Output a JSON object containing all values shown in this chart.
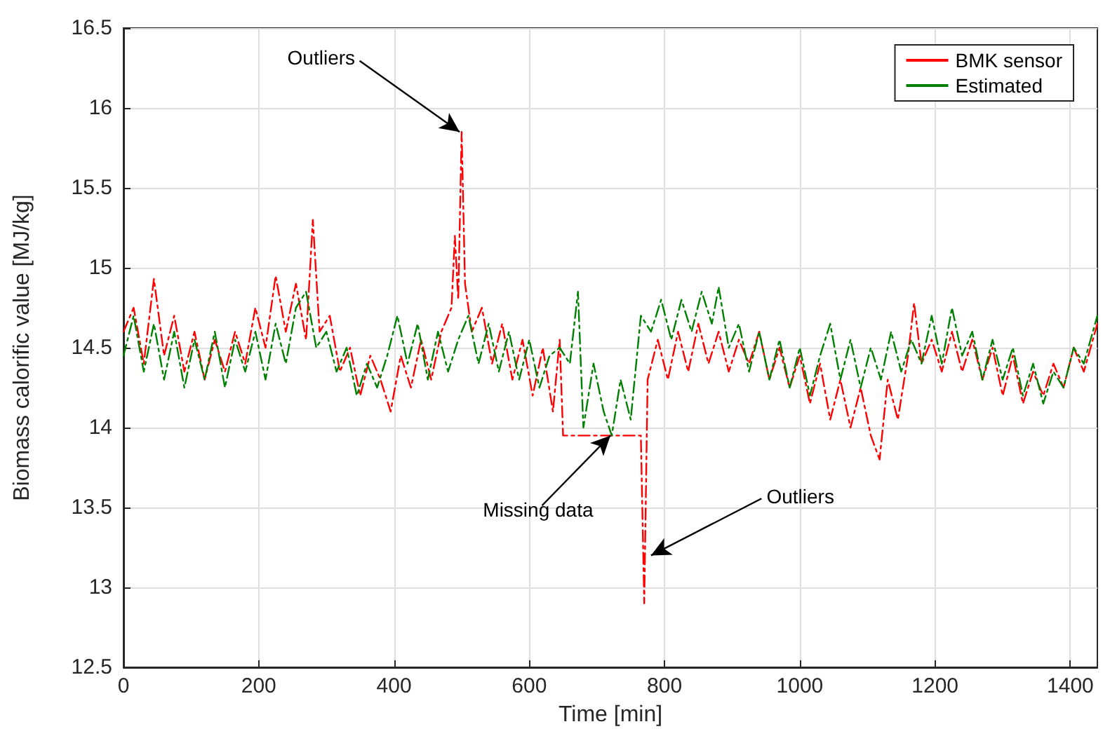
{
  "chart_data": {
    "type": "line",
    "xlabel": "Time [min]",
    "ylabel": "Biomass calorific value [MJ/kg]",
    "xlim": [
      0,
      1440
    ],
    "xticks": [
      0,
      200,
      400,
      600,
      800,
      1000,
      1200,
      1400
    ],
    "ylim": [
      12.5,
      16.5
    ],
    "yticks": [
      12.5,
      13,
      13.5,
      14,
      14.5,
      15,
      15.5,
      16,
      16.5
    ],
    "grid": true,
    "legend": "top right",
    "marker": "none",
    "line_style": "dashed",
    "annotations": [
      {
        "text": "Outliers",
        "x": 497,
        "y": 15.85
      },
      {
        "text": "Missing data",
        "x": 720,
        "y": 13.95
      },
      {
        "text": "Outliers",
        "x": 780,
        "y": 13.2
      }
    ],
    "series": [
      {
        "name": "BMK sensor",
        "color": "#ff0000",
        "x": [
          0,
          15,
          30,
          45,
          60,
          75,
          90,
          105,
          120,
          135,
          150,
          165,
          180,
          195,
          210,
          225,
          240,
          255,
          270,
          280,
          290,
          305,
          320,
          335,
          350,
          365,
          380,
          395,
          410,
          425,
          440,
          455,
          470,
          485,
          490,
          495,
          500,
          505,
          515,
          530,
          545,
          560,
          575,
          590,
          605,
          620,
          635,
          645,
          650,
          700,
          765,
          770,
          775,
          790,
          805,
          820,
          835,
          850,
          865,
          880,
          895,
          910,
          925,
          940,
          955,
          970,
          985,
          1000,
          1015,
          1030,
          1045,
          1060,
          1075,
          1090,
          1105,
          1118,
          1130,
          1145,
          1160,
          1169,
          1180,
          1195,
          1210,
          1225,
          1240,
          1255,
          1270,
          1285,
          1300,
          1315,
          1330,
          1345,
          1360,
          1375,
          1390,
          1405,
          1420,
          1440
        ],
        "values": [
          14.6,
          14.75,
          14.4,
          14.93,
          14.45,
          14.7,
          14.35,
          14.6,
          14.3,
          14.55,
          14.35,
          14.6,
          14.4,
          14.75,
          14.5,
          14.95,
          14.6,
          14.9,
          14.55,
          15.3,
          14.6,
          14.7,
          14.35,
          14.5,
          14.2,
          14.45,
          14.3,
          14.1,
          14.45,
          14.25,
          14.55,
          14.3,
          14.6,
          14.75,
          15.2,
          14.8,
          15.85,
          14.9,
          14.6,
          14.75,
          14.4,
          14.65,
          14.3,
          14.55,
          14.2,
          14.5,
          14.1,
          14.55,
          13.95,
          13.95,
          13.95,
          12.9,
          14.3,
          14.55,
          14.3,
          14.6,
          14.35,
          14.65,
          14.4,
          14.6,
          14.35,
          14.55,
          14.4,
          14.6,
          14.3,
          14.5,
          14.25,
          14.45,
          14.15,
          14.4,
          14.05,
          14.3,
          14.0,
          14.25,
          13.95,
          13.8,
          14.3,
          14.05,
          14.45,
          14.78,
          14.4,
          14.55,
          14.35,
          14.6,
          14.35,
          14.55,
          14.3,
          14.5,
          14.2,
          14.45,
          14.15,
          14.35,
          14.2,
          14.4,
          14.25,
          14.5,
          14.35,
          14.65
        ]
      },
      {
        "name": "Estimated",
        "color": "#008000",
        "x": [
          0,
          15,
          30,
          45,
          60,
          75,
          90,
          105,
          120,
          135,
          150,
          165,
          180,
          195,
          210,
          225,
          240,
          255,
          270,
          285,
          300,
          315,
          330,
          345,
          360,
          375,
          390,
          405,
          420,
          435,
          450,
          465,
          480,
          495,
          510,
          525,
          540,
          555,
          570,
          585,
          600,
          615,
          630,
          645,
          660,
          672,
          680,
          695,
          710,
          722,
          735,
          750,
          765,
          780,
          795,
          810,
          825,
          840,
          855,
          870,
          880,
          895,
          910,
          925,
          940,
          955,
          970,
          985,
          1000,
          1015,
          1030,
          1045,
          1060,
          1075,
          1090,
          1105,
          1120,
          1135,
          1150,
          1165,
          1180,
          1195,
          1210,
          1225,
          1240,
          1255,
          1270,
          1285,
          1300,
          1315,
          1330,
          1345,
          1360,
          1375,
          1390,
          1405,
          1420,
          1440
        ],
        "values": [
          14.45,
          14.7,
          14.35,
          14.65,
          14.3,
          14.6,
          14.25,
          14.55,
          14.3,
          14.6,
          14.25,
          14.55,
          14.35,
          14.6,
          14.3,
          14.65,
          14.4,
          14.75,
          14.85,
          14.5,
          14.6,
          14.35,
          14.5,
          14.2,
          14.4,
          14.25,
          14.45,
          14.7,
          14.4,
          14.65,
          14.3,
          14.6,
          14.35,
          14.55,
          14.7,
          14.4,
          14.65,
          14.35,
          14.6,
          14.3,
          14.55,
          14.25,
          14.45,
          14.5,
          14.4,
          14.85,
          14.0,
          14.4,
          14.1,
          13.95,
          14.3,
          14.05,
          14.7,
          14.6,
          14.8,
          14.55,
          14.8,
          14.6,
          14.85,
          14.65,
          14.88,
          14.5,
          14.65,
          14.35,
          14.6,
          14.3,
          14.55,
          14.25,
          14.5,
          14.2,
          14.45,
          14.65,
          14.3,
          14.55,
          14.25,
          14.5,
          14.3,
          14.6,
          14.35,
          14.55,
          14.4,
          14.7,
          14.4,
          14.75,
          14.45,
          14.6,
          14.3,
          14.55,
          14.3,
          14.5,
          14.2,
          14.4,
          14.15,
          14.35,
          14.25,
          14.5,
          14.4,
          14.7
        ]
      }
    ]
  }
}
